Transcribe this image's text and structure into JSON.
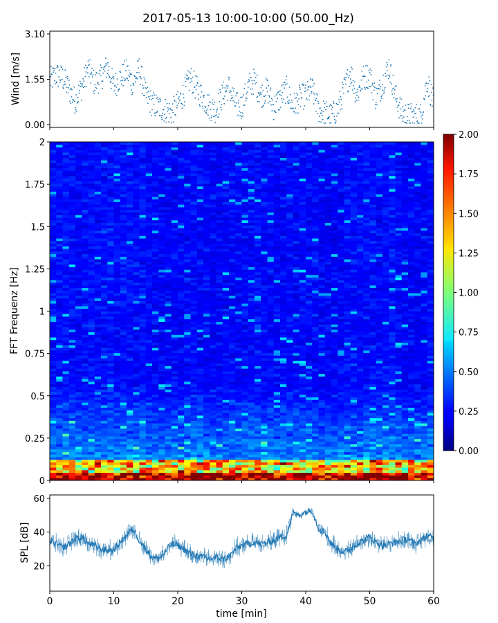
{
  "title": "2017-05-13 10:00-10:00 (50.00_Hz)",
  "chart_data": [
    {
      "type": "scatter",
      "ylabel": "Wind [m/s]",
      "ylim": [
        0,
        3.1
      ],
      "yticks": [
        "0.00",
        "1.55",
        "3.10"
      ],
      "xlim": [
        0,
        60
      ],
      "series": [
        {
          "color": "#1f77b4",
          "x": [
            0,
            1,
            2,
            3,
            4,
            5,
            6,
            7,
            8,
            9,
            10,
            11,
            12,
            13,
            14,
            15,
            16,
            17,
            18,
            19,
            20,
            21,
            22,
            23,
            24,
            25,
            26,
            27,
            28,
            29,
            30,
            31,
            32,
            33,
            34,
            35,
            36,
            37,
            38,
            39,
            40,
            41,
            42,
            43,
            44,
            45,
            46,
            47,
            48,
            49,
            50,
            51,
            52,
            53,
            54,
            55,
            56,
            57,
            58,
            59,
            60
          ],
          "y": [
            1.5,
            1.7,
            1.6,
            1.2,
            0.8,
            1.3,
            1.9,
            1.4,
            1.6,
            2.0,
            1.3,
            1.6,
            1.8,
            1.4,
            1.9,
            1.0,
            0.7,
            0.6,
            0.5,
            0.4,
            0.7,
            1.1,
            1.6,
            1.2,
            0.9,
            0.6,
            0.5,
            1.0,
            1.3,
            0.7,
            0.6,
            1.3,
            1.5,
            1.0,
            1.2,
            0.6,
            0.9,
            1.2,
            0.6,
            0.9,
            1.0,
            1.2,
            0.5,
            0.4,
            0.3,
            0.5,
            1.2,
            1.8,
            1.0,
            1.6,
            1.7,
            0.9,
            1.4,
            2.0,
            1.0,
            0.4,
            0.3,
            0.3,
            0.3,
            1.5,
            0.7
          ]
        }
      ]
    },
    {
      "type": "heatmap",
      "ylabel": "FFT Frequenz [Hz]",
      "ylim": [
        0,
        2
      ],
      "yticks": [
        "0",
        "0.25",
        "0.5",
        "0.75",
        "1",
        "1.25",
        "1.5",
        "1.75",
        "2"
      ],
      "xlim": [
        0,
        60
      ],
      "colorbar": {
        "range": [
          0,
          2
        ],
        "ticks": [
          "0.00",
          "0.25",
          "0.50",
          "0.75",
          "1.00",
          "1.25",
          "1.50",
          "1.75",
          "2.00"
        ],
        "colormap": "jet"
      }
    },
    {
      "type": "line",
      "ylabel": "SPL [dB]",
      "xlabel": "time [min]",
      "ylim": [
        5,
        62
      ],
      "yticks": [
        "20",
        "40",
        "60"
      ],
      "xlim": [
        0,
        60
      ],
      "xticks": [
        "0",
        "10",
        "20",
        "30",
        "40",
        "50",
        "60"
      ],
      "series": [
        {
          "color": "#1f77b4",
          "x": [
            0,
            1,
            2,
            3,
            4,
            5,
            6,
            7,
            8,
            9,
            10,
            11,
            12,
            13,
            14,
            15,
            16,
            17,
            18,
            19,
            20,
            21,
            22,
            23,
            24,
            25,
            26,
            27,
            28,
            29,
            30,
            31,
            32,
            33,
            34,
            35,
            36,
            37,
            38,
            39,
            40,
            41,
            42,
            43,
            44,
            45,
            46,
            47,
            48,
            49,
            50,
            51,
            52,
            53,
            54,
            55,
            56,
            57,
            58,
            59,
            60
          ],
          "y": [
            35,
            33,
            31,
            33,
            36,
            37,
            33,
            32,
            30,
            29,
            30,
            34,
            38,
            42,
            35,
            30,
            25,
            24,
            28,
            33,
            32,
            30,
            27,
            26,
            25,
            24,
            25,
            24,
            25,
            30,
            32,
            33,
            34,
            33,
            34,
            35,
            37,
            38,
            51,
            50,
            52,
            53,
            42,
            40,
            33,
            30,
            28,
            30,
            33,
            35,
            37,
            34,
            32,
            33,
            34,
            35,
            36,
            33,
            35,
            38,
            36
          ]
        }
      ]
    }
  ]
}
